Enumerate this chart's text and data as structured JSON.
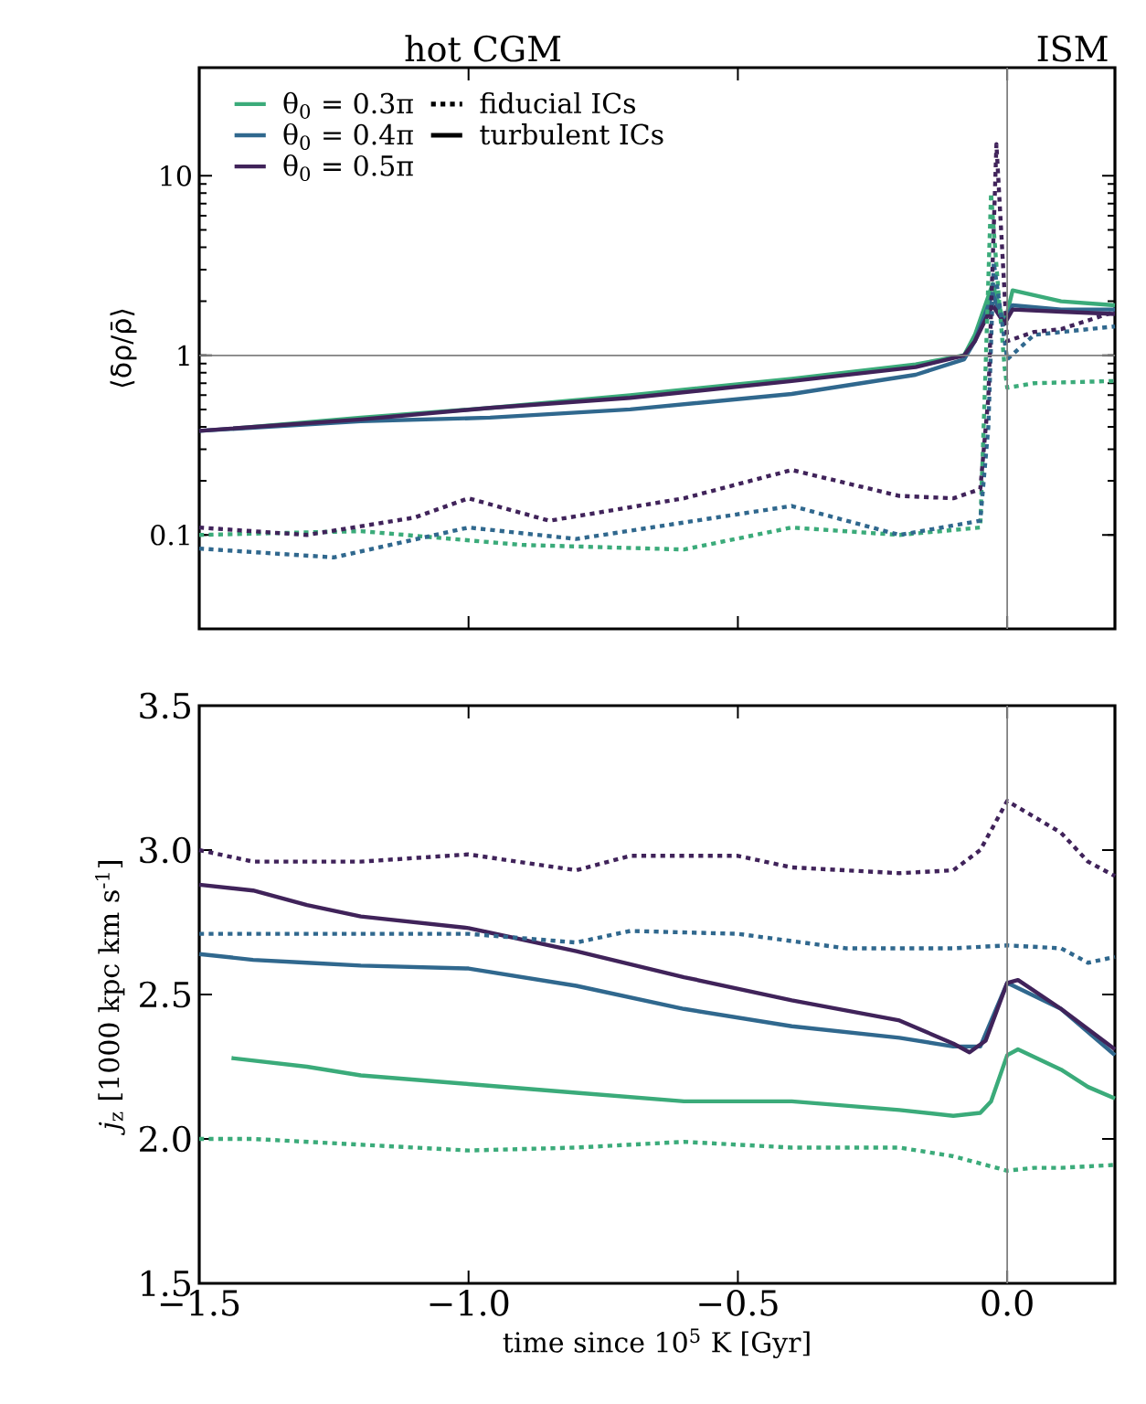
{
  "chart_data": [
    {
      "type": "line",
      "ylabel": "⟨δρ/ρ̄⟩",
      "log": "y",
      "xlim": [
        -1.5,
        0.2
      ],
      "xticks": [
        -1.5,
        -1.0,
        -0.5,
        0.0
      ],
      "ylim": [
        0.03,
        40
      ],
      "yticks": [
        0.1,
        1,
        10
      ],
      "tick_labels": "y",
      "legend": "top left",
      "annotations": [
        "hot CGM",
        "ISM",
        "fiducial ICs",
        "turbulent ICs"
      ],
      "ref_lines": [
        {
          "axis": "y",
          "value": 1,
          "color": "#808080"
        },
        {
          "axis": "x",
          "value": 0,
          "color": "#808080"
        }
      ],
      "series": [
        {
          "name": "θ$_{0}$ = 0.3π",
          "color": "#3bab7a",
          "line_style": "solid",
          "x": [
            -1.44,
            -1.2,
            -0.96,
            -0.7,
            -0.4,
            -0.17,
            -0.08,
            -0.06,
            -0.027,
            -0.005,
            0.01,
            0.1,
            0.2
          ],
          "values": [
            0.39,
            0.45,
            0.51,
            0.6,
            0.74,
            0.89,
            1.0,
            1.3,
            2.5,
            1.5,
            2.3,
            2.0,
            1.9
          ]
        },
        {
          "name": "θ$_{0}$ = 0.4π",
          "color": "#30688e",
          "line_style": "solid",
          "x": [
            -1.5,
            -1.2,
            -0.96,
            -0.7,
            -0.4,
            -0.17,
            -0.08,
            -0.06,
            -0.027,
            -0.005,
            0.01,
            0.1,
            0.2
          ],
          "values": [
            0.38,
            0.43,
            0.45,
            0.5,
            0.61,
            0.78,
            0.95,
            1.2,
            2.2,
            1.5,
            1.9,
            1.8,
            1.8
          ]
        },
        {
          "name": "θ$_{0}$ = 0.5π",
          "color": "#40235a",
          "line_style": "solid",
          "x": [
            -1.5,
            -1.2,
            -0.96,
            -0.7,
            -0.4,
            -0.17,
            -0.08,
            -0.06,
            -0.027,
            -0.005,
            0.01,
            0.1,
            0.2
          ],
          "values": [
            0.38,
            0.44,
            0.51,
            0.58,
            0.72,
            0.86,
            1.0,
            1.2,
            1.9,
            1.5,
            1.8,
            1.75,
            1.7
          ]
        },
        {
          "color": "#3bab7a",
          "line_style": "dotted",
          "x": [
            -1.5,
            -1.2,
            -0.9,
            -0.6,
            -0.4,
            -0.2,
            -0.05,
            -0.04,
            -0.03,
            -0.015,
            -0.005,
            0.0,
            0.05,
            0.2
          ],
          "values": [
            0.1,
            0.105,
            0.088,
            0.083,
            0.11,
            0.1,
            0.11,
            0.87,
            8,
            2.0,
            0.87,
            0.66,
            0.7,
            0.72
          ]
        },
        {
          "color": "#30688e",
          "line_style": "dotted",
          "x": [
            -1.5,
            -1.25,
            -1.0,
            -0.8,
            -0.4,
            -0.2,
            -0.05,
            -0.035,
            -0.025,
            0.0,
            0.05,
            0.2
          ],
          "values": [
            0.084,
            0.075,
            0.11,
            0.095,
            0.145,
            0.1,
            0.12,
            0.4,
            3.3,
            0.95,
            1.3,
            1.45
          ]
        },
        {
          "color": "#40235a",
          "line_style": "dotted",
          "x": [
            -1.5,
            -1.3,
            -1.1,
            -1.0,
            -0.85,
            -0.6,
            -0.4,
            -0.2,
            -0.1,
            -0.05,
            -0.035,
            -0.02,
            0.0,
            0.05,
            0.1,
            0.2
          ],
          "values": [
            0.11,
            0.1,
            0.125,
            0.16,
            0.12,
            0.16,
            0.23,
            0.165,
            0.16,
            0.18,
            0.58,
            15,
            1.2,
            1.35,
            1.4,
            1.75
          ]
        }
      ]
    },
    {
      "type": "line",
      "xlabel": "time since 10$^{5}$ K [Gyr]",
      "ylabel": "*j*$_{z}$ [1000 kpc km s$^{-1}$]",
      "xlim": [
        -1.5,
        0.2
      ],
      "xticks": [
        {
          "value": -1.5,
          "label": "−1.5"
        },
        {
          "value": -1.0,
          "label": "−1.0"
        },
        {
          "value": -0.5,
          "label": "−0.5"
        },
        {
          "value": 0.0,
          "label": "0.0"
        }
      ],
      "ylim": [
        1.5,
        3.5
      ],
      "yticks": [
        {
          "value": 1.5,
          "label": "1.5"
        },
        {
          "value": 2.0,
          "label": "2.0"
        },
        {
          "value": 2.5,
          "label": "2.5"
        },
        {
          "value": 3.0,
          "label": "3.0"
        },
        {
          "value": 3.5,
          "label": "3.5"
        }
      ],
      "ref_lines": [
        {
          "axis": "x",
          "value": 0,
          "color": "#808080"
        }
      ],
      "series": [
        {
          "color": "#3bab7a",
          "line_style": "solid",
          "x": [
            -1.44,
            -1.3,
            -1.2,
            -1.0,
            -0.8,
            -0.6,
            -0.4,
            -0.2,
            -0.1,
            -0.05,
            -0.03,
            0.0,
            0.02,
            0.1,
            0.15,
            0.2
          ],
          "values": [
            2.28,
            2.25,
            2.22,
            2.19,
            2.16,
            2.13,
            2.13,
            2.1,
            2.08,
            2.09,
            2.13,
            2.29,
            2.31,
            2.24,
            2.18,
            2.14
          ]
        },
        {
          "color": "#30688e",
          "line_style": "solid",
          "x": [
            -1.5,
            -1.4,
            -1.3,
            -1.2,
            -1.0,
            -0.9,
            -0.8,
            -0.6,
            -0.4,
            -0.2,
            -0.1,
            -0.05,
            0.0,
            0.1,
            0.2
          ],
          "values": [
            2.64,
            2.62,
            2.61,
            2.6,
            2.59,
            2.56,
            2.53,
            2.45,
            2.39,
            2.35,
            2.32,
            2.32,
            2.54,
            2.45,
            2.29
          ]
        },
        {
          "color": "#40235a",
          "line_style": "solid",
          "x": [
            -1.5,
            -1.4,
            -1.3,
            -1.2,
            -1.0,
            -0.8,
            -0.6,
            -0.4,
            -0.2,
            -0.1,
            -0.07,
            -0.04,
            0.0,
            0.02,
            0.1,
            0.2
          ],
          "values": [
            2.88,
            2.86,
            2.81,
            2.77,
            2.73,
            2.65,
            2.56,
            2.48,
            2.41,
            2.33,
            2.3,
            2.34,
            2.54,
            2.55,
            2.45,
            2.31
          ]
        },
        {
          "color": "#3bab7a",
          "line_style": "dotted",
          "x": [
            -1.5,
            -1.4,
            -1.2,
            -1.0,
            -0.8,
            -0.6,
            -0.4,
            -0.2,
            -0.1,
            0.0,
            0.05,
            0.1,
            0.2
          ],
          "values": [
            2.0,
            2.0,
            1.98,
            1.96,
            1.97,
            1.99,
            1.97,
            1.97,
            1.94,
            1.89,
            1.9,
            1.9,
            1.91
          ]
        },
        {
          "color": "#30688e",
          "line_style": "dotted",
          "x": [
            -1.5,
            -1.2,
            -1.0,
            -0.8,
            -0.7,
            -0.5,
            -0.3,
            -0.1,
            0.0,
            0.1,
            0.15,
            0.2
          ],
          "values": [
            2.71,
            2.71,
            2.71,
            2.68,
            2.72,
            2.71,
            2.66,
            2.66,
            2.67,
            2.66,
            2.61,
            2.63
          ]
        },
        {
          "color": "#40235a",
          "line_style": "dotted",
          "x": [
            -1.5,
            -1.4,
            -1.2,
            -1.0,
            -0.8,
            -0.7,
            -0.5,
            -0.4,
            -0.2,
            -0.1,
            -0.05,
            0.0,
            0.1,
            0.15,
            0.2
          ],
          "values": [
            3.0,
            2.96,
            2.96,
            2.985,
            2.93,
            2.98,
            2.98,
            2.94,
            2.92,
            2.93,
            3.0,
            3.17,
            3.06,
            2.96,
            2.91
          ]
        }
      ]
    }
  ]
}
